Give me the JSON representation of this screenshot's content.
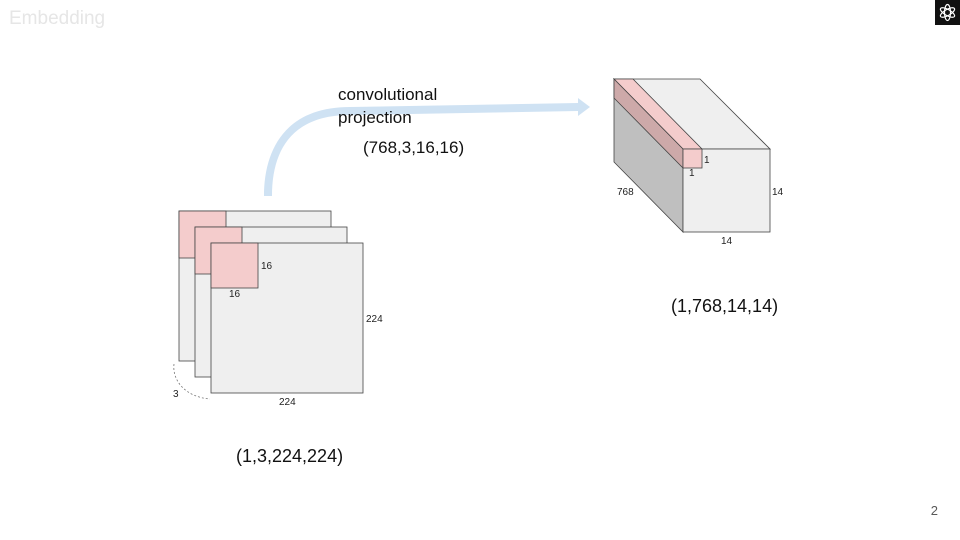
{
  "slide": {
    "title": "Embedding",
    "page_number": "2"
  },
  "arrow": {
    "label_line1": "convolutional",
    "label_line2": "projection",
    "weight_shape": "(768,3,16,16)"
  },
  "input": {
    "shape": "(1,3,224,224)",
    "patch_height": "16",
    "patch_width": "16",
    "height": "224",
    "width": "224",
    "channels": "3"
  },
  "output": {
    "shape": "(1,768,14,14)",
    "depth": "768",
    "height": "14",
    "width": "14",
    "cell_height": "1",
    "cell_width": "1"
  },
  "colors": {
    "plane_fill": "#efefef",
    "patch_fill": "#f4cccc",
    "patch_dark": "#cda9a9",
    "side_fill": "#bfbfbf",
    "arrow_fill": "#cfe2f3",
    "stroke": "#444444"
  }
}
